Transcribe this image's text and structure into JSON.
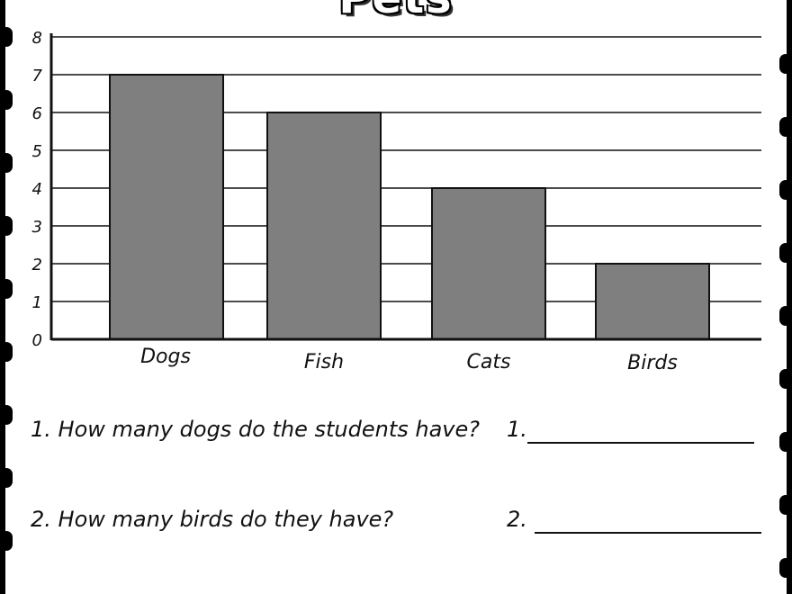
{
  "title": "Pets",
  "chart_data": {
    "type": "bar",
    "title": "Pets",
    "categories": [
      "Dogs",
      "Fish",
      "Cats",
      "Birds"
    ],
    "values": [
      7,
      6,
      4,
      2
    ],
    "ylim": [
      0,
      8
    ],
    "yticks": [
      0,
      1,
      2,
      3,
      4,
      5,
      6,
      7,
      8
    ],
    "xlabel": "",
    "ylabel": "",
    "grid": true,
    "bar_color": "#7f7f7f"
  },
  "questions": [
    {
      "text": "1. How many dogs do the students have?",
      "answer_label": "1."
    },
    {
      "text": "2. How many birds do they have?",
      "answer_label": "2."
    }
  ]
}
